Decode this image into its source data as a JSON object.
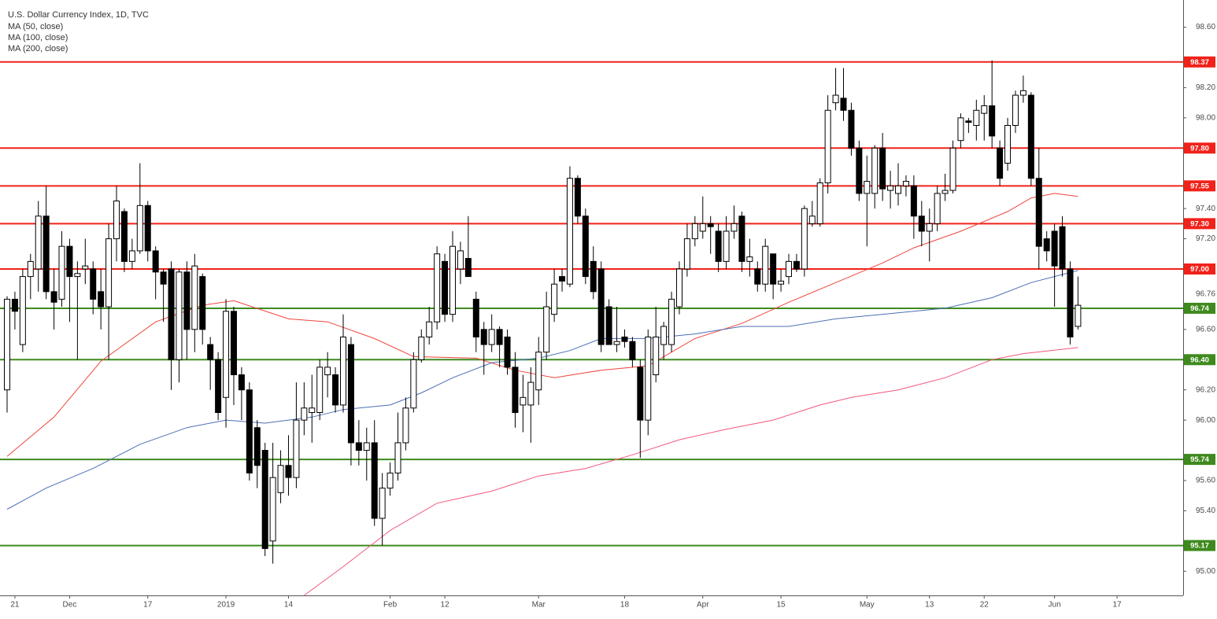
{
  "chart_data": {
    "type": "candlestick",
    "title": "U.S. Dollar Currency Index, 1D, TVC",
    "ylim": [
      94.84,
      98.78
    ],
    "yticks": [
      {
        "value": 95.0,
        "label": "95.00"
      },
      {
        "value": 95.4,
        "label": "95.40"
      },
      {
        "value": 95.6,
        "label": "95.60"
      },
      {
        "value": 96.0,
        "label": "96.00"
      },
      {
        "value": 96.2,
        "label": "96.20"
      },
      {
        "value": 96.6,
        "label": "96.60"
      },
      {
        "value": 97.2,
        "label": "97.20"
      },
      {
        "value": 97.4,
        "label": "97.40"
      },
      {
        "value": 98.0,
        "label": "98.00"
      },
      {
        "value": 98.2,
        "label": "98.20"
      },
      {
        "value": 98.6,
        "label": "98.60"
      }
    ],
    "xlim": [
      -1,
      150
    ],
    "xticks": [
      {
        "value": 1,
        "label": "21"
      },
      {
        "value": 8,
        "label": "Dec"
      },
      {
        "value": 18,
        "label": "17"
      },
      {
        "value": 28,
        "label": "2019"
      },
      {
        "value": 36,
        "label": "14"
      },
      {
        "value": 49,
        "label": "Feb"
      },
      {
        "value": 56,
        "label": "12"
      },
      {
        "value": 68,
        "label": "Mar"
      },
      {
        "value": 79,
        "label": "18"
      },
      {
        "value": 89,
        "label": "Apr"
      },
      {
        "value": 99,
        "label": "15"
      },
      {
        "value": 110,
        "label": "May"
      },
      {
        "value": 118,
        "label": "13"
      },
      {
        "value": 125,
        "label": "22"
      },
      {
        "value": 134,
        "label": "Jun"
      },
      {
        "value": 142,
        "label": "17"
      }
    ],
    "candles": {
      "open": [
        96.2,
        96.8,
        96.5,
        96.95,
        97.0,
        97.35,
        96.85,
        96.8,
        97.15,
        96.95,
        97.0,
        97.0,
        96.85,
        96.75,
        97.2,
        97.38,
        97.05,
        97.12,
        97.42,
        97.12,
        96.98,
        97.0,
        96.4,
        96.98,
        96.6,
        96.95,
        96.5,
        96.4,
        96.15,
        96.72,
        96.3,
        96.2,
        95.95,
        95.8,
        95.2,
        95.52,
        95.7,
        95.62,
        96.0,
        96.05,
        96.05,
        96.3,
        96.3,
        96.1,
        96.5,
        95.85,
        95.8,
        95.85,
        95.35,
        95.55,
        95.65,
        95.85,
        96.08,
        96.4,
        96.55,
        96.65,
        97.05,
        96.7,
        97.0,
        97.07,
        96.8,
        96.6,
        96.5,
        96.6,
        96.55,
        96.35,
        96.1,
        96.1,
        96.2,
        96.45,
        96.7,
        96.95,
        96.9,
        97.6,
        97.35,
        97.05,
        97.0,
        96.75,
        96.5,
        96.55,
        96.52,
        96.35,
        96.0,
        96.3,
        96.5,
        96.5,
        96.75,
        97.0,
        97.2,
        97.25,
        97.3,
        97.25,
        97.05,
        97.25,
        97.35,
        97.05,
        97.0,
        96.9,
        97.1,
        96.9,
        96.95,
        97.05,
        97.0,
        97.3,
        97.3,
        97.57,
        98.1,
        98.13,
        98.05,
        97.8,
        97.5,
        97.5,
        97.8,
        97.52,
        97.5,
        97.55,
        97.55,
        97.35,
        97.25,
        97.3,
        97.5,
        97.52,
        97.85,
        97.98,
        97.95,
        98.03,
        98.08,
        97.8,
        97.7,
        97.95,
        98.15,
        98.15,
        97.6,
        97.2,
        97.25,
        97.28,
        97.0,
        96.62
      ],
      "close": [
        96.8,
        96.72,
        96.95,
        97.05,
        97.35,
        96.85,
        96.78,
        97.15,
        96.95,
        96.97,
        97.02,
        96.8,
        96.75,
        97.2,
        97.45,
        97.05,
        97.12,
        97.42,
        97.12,
        96.98,
        96.9,
        96.4,
        96.98,
        96.6,
        97.02,
        96.6,
        96.4,
        96.05,
        96.72,
        96.3,
        96.2,
        95.65,
        95.7,
        95.15,
        95.62,
        95.7,
        95.62,
        96.0,
        96.08,
        96.08,
        96.35,
        96.35,
        96.1,
        96.55,
        95.85,
        95.8,
        95.85,
        95.35,
        95.55,
        95.65,
        95.85,
        96.08,
        96.4,
        96.55,
        96.65,
        97.1,
        96.7,
        97.15,
        97.12,
        96.95,
        96.55,
        96.5,
        96.6,
        96.5,
        96.35,
        96.05,
        96.15,
        96.25,
        96.45,
        96.75,
        96.9,
        96.92,
        97.6,
        97.35,
        96.95,
        96.85,
        96.5,
        96.5,
        96.52,
        96.52,
        96.4,
        96.0,
        96.55,
        96.55,
        96.62,
        96.8,
        97.0,
        97.2,
        97.3,
        97.3,
        97.28,
        97.05,
        97.25,
        97.3,
        97.05,
        97.08,
        96.9,
        97.15,
        96.9,
        96.92,
        97.05,
        97.0,
        97.4,
        97.35,
        97.57,
        98.05,
        98.15,
        98.05,
        97.8,
        97.5,
        97.58,
        97.8,
        97.53,
        97.55,
        97.55,
        97.58,
        97.35,
        97.25,
        97.3,
        97.5,
        97.52,
        97.8,
        98.0,
        97.97,
        98.05,
        98.08,
        97.88,
        97.6,
        97.95,
        98.15,
        98.18,
        97.6,
        97.15,
        97.12,
        97.02,
        97.0,
        96.55,
        96.76
      ],
      "high": [
        96.82,
        96.85,
        97.0,
        97.1,
        97.45,
        97.55,
        97.0,
        97.25,
        97.2,
        97.05,
        97.2,
        97.05,
        97.0,
        97.3,
        97.55,
        97.4,
        97.2,
        97.7,
        97.45,
        97.15,
        97.0,
        97.05,
        97.0,
        97.05,
        97.1,
        96.97,
        96.55,
        96.45,
        96.8,
        96.75,
        96.35,
        96.25,
        96.0,
        95.85,
        95.85,
        95.8,
        95.9,
        96.25,
        96.25,
        96.3,
        96.4,
        96.45,
        96.35,
        96.7,
        96.55,
        96.0,
        95.95,
        96.0,
        95.65,
        95.72,
        96.05,
        96.15,
        96.45,
        96.6,
        96.75,
        97.15,
        97.1,
        97.25,
        97.18,
        97.35,
        96.85,
        96.65,
        96.7,
        96.62,
        96.6,
        96.45,
        96.3,
        96.35,
        96.55,
        96.85,
        97.0,
        97.0,
        97.68,
        97.62,
        97.4,
        97.15,
        97.05,
        96.8,
        96.75,
        96.6,
        96.55,
        96.4,
        96.6,
        96.75,
        96.65,
        96.85,
        97.05,
        97.3,
        97.35,
        97.48,
        97.35,
        97.3,
        97.35,
        97.42,
        97.38,
        97.2,
        97.05,
        97.2,
        97.1,
        97.0,
        97.1,
        97.1,
        97.42,
        97.45,
        97.6,
        98.15,
        98.33,
        98.33,
        98.1,
        97.85,
        97.75,
        97.82,
        97.9,
        97.65,
        97.7,
        97.62,
        97.62,
        97.45,
        97.4,
        97.55,
        97.63,
        97.85,
        98.03,
        98.0,
        98.12,
        98.15,
        98.38,
        97.85,
        98.0,
        98.18,
        98.28,
        98.17,
        97.8,
        97.25,
        97.3,
        97.35,
        97.05,
        96.95
      ],
      "low": [
        96.05,
        96.6,
        96.45,
        96.8,
        96.85,
        96.8,
        96.6,
        96.75,
        96.65,
        96.4,
        96.9,
        96.7,
        96.6,
        96.4,
        97.05,
        96.98,
        97.0,
        97.1,
        97.05,
        96.8,
        96.65,
        96.2,
        96.25,
        96.4,
        96.45,
        96.5,
        96.2,
        96.0,
        95.95,
        96.1,
        96.0,
        95.6,
        95.55,
        95.1,
        95.05,
        95.45,
        95.5,
        95.55,
        95.9,
        95.85,
        96.0,
        96.15,
        96.05,
        96.05,
        95.7,
        95.7,
        95.6,
        95.3,
        95.17,
        95.5,
        95.6,
        95.8,
        96.05,
        96.38,
        96.5,
        96.6,
        96.65,
        96.65,
        96.9,
        96.95,
        96.45,
        96.3,
        96.45,
        96.35,
        96.3,
        95.95,
        95.92,
        95.85,
        96.1,
        96.4,
        96.65,
        96.85,
        96.88,
        97.3,
        96.9,
        96.8,
        96.45,
        96.5,
        96.45,
        96.48,
        96.35,
        95.75,
        95.9,
        96.25,
        96.4,
        96.45,
        96.7,
        96.95,
        97.15,
        97.2,
        97.1,
        96.98,
        97.0,
        97.2,
        96.98,
        96.95,
        96.85,
        96.85,
        96.8,
        96.85,
        96.9,
        96.98,
        96.95,
        97.28,
        97.28,
        97.5,
        98.05,
        97.98,
        97.75,
        97.45,
        97.15,
        97.4,
        97.45,
        97.4,
        97.42,
        97.48,
        97.2,
        97.15,
        97.05,
        97.25,
        97.45,
        97.5,
        97.8,
        97.9,
        97.85,
        97.85,
        97.8,
        97.55,
        97.65,
        97.9,
        98.1,
        97.55,
        97.0,
        97.05,
        96.75,
        96.95,
        96.5,
        96.6
      ]
    },
    "up_color": "#ffffff",
    "down_color": "#000000",
    "series": [
      {
        "name": "MA (50, close)",
        "color": "#f0453a",
        "x": [
          0,
          6,
          12,
          19,
          25,
          29,
          36,
          41,
          47,
          52,
          60,
          65,
          70,
          76,
          82,
          88,
          94,
          100,
          106,
          112,
          116,
          122,
          128,
          131,
          134,
          137
        ],
        "values": [
          95.76,
          96.02,
          96.39,
          96.65,
          96.76,
          96.79,
          96.67,
          96.65,
          96.54,
          96.42,
          96.41,
          96.33,
          96.28,
          96.33,
          96.36,
          96.54,
          96.64,
          96.78,
          96.91,
          97.04,
          97.14,
          97.25,
          97.38,
          97.47,
          97.5,
          97.48
        ]
      },
      {
        "name": "MA (100, close)",
        "color": "#4c6fb5",
        "x": [
          0,
          5,
          11,
          17,
          23,
          28,
          33,
          39,
          43,
          49,
          53,
          57,
          62,
          68,
          72,
          76,
          82,
          88,
          94,
          100,
          106,
          112,
          120,
          126,
          131,
          137
        ],
        "values": [
          95.41,
          95.55,
          95.68,
          95.84,
          95.95,
          96.0,
          95.98,
          96.02,
          96.07,
          96.1,
          96.18,
          96.28,
          96.38,
          96.41,
          96.46,
          96.54,
          96.54,
          96.57,
          96.62,
          96.62,
          96.67,
          96.7,
          96.74,
          96.81,
          96.91,
          96.99
        ]
      },
      {
        "name": "MA (200, close)",
        "color": "#f2577c",
        "x": [
          38,
          43,
          49,
          55,
          62,
          68,
          74,
          80,
          86,
          92,
          98,
          104,
          108,
          114,
          120,
          126,
          130,
          137
        ],
        "values": [
          94.84,
          95.03,
          95.27,
          95.45,
          95.53,
          95.63,
          95.68,
          95.77,
          95.87,
          95.94,
          96.0,
          96.1,
          96.15,
          96.2,
          96.28,
          96.4,
          96.44,
          96.48
        ]
      }
    ],
    "levels": [
      {
        "value": 98.37,
        "label": "98.37",
        "color": "#f0221a"
      },
      {
        "value": 97.8,
        "label": "97.80",
        "color": "#f0221a"
      },
      {
        "value": 97.55,
        "label": "97.55",
        "color": "#f0221a"
      },
      {
        "value": 97.3,
        "label": "97.30",
        "color": "#f0221a"
      },
      {
        "value": 97.0,
        "label": "97.00",
        "color": "#f0221a"
      },
      {
        "value": 96.74,
        "label": "96.74",
        "color": "#3f8a1e"
      },
      {
        "value": 96.4,
        "label": "96.40",
        "color": "#3f8a1e"
      },
      {
        "value": 95.74,
        "label": "95.74",
        "color": "#3f8a1e"
      },
      {
        "value": 95.17,
        "label": "95.17",
        "color": "#3f8a1e"
      }
    ],
    "last_price": {
      "value": 96.76,
      "label": "96.76"
    }
  }
}
